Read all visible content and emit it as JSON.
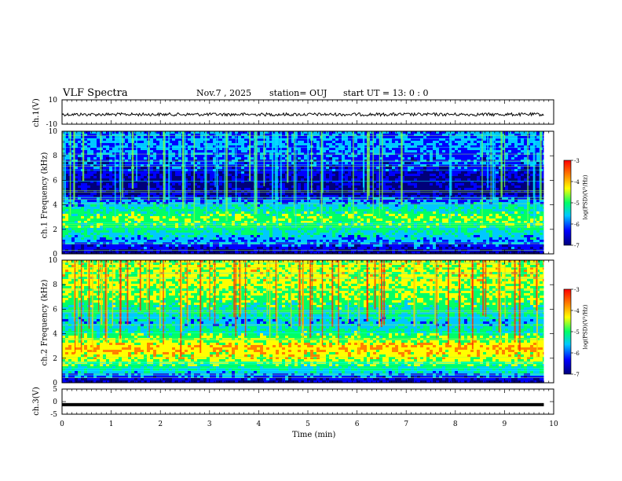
{
  "header": {
    "title": "VLF Spectra",
    "date": "Nov.7 , 2025",
    "station": "station= OUJ",
    "start": "start UT = 13: 0 : 0"
  },
  "chart_data": [
    {
      "type": "line",
      "panel": "ch1-waveform",
      "ylabel": "ch.1(V)",
      "ylim": [
        -10,
        10
      ],
      "y_ticks": [
        "10",
        "-10"
      ],
      "x": [
        0,
        9.8
      ],
      "series": [
        {
          "values": [
            -2,
            -2
          ]
        }
      ]
    },
    {
      "type": "heatmap",
      "panel": "ch1-spectrogram",
      "ylabel": "ch.1 Frequency (kHz)",
      "ylim": [
        0,
        10
      ],
      "y_ticks": [
        "0",
        "2",
        "4",
        "6",
        "8",
        "10"
      ],
      "colorbar": {
        "label": "log(PSD)(V²/Hz)",
        "ticks": [
          "-3",
          "-4",
          "-5",
          "-6",
          "-7"
        ],
        "range": [
          -7,
          -3
        ]
      }
    },
    {
      "type": "heatmap",
      "panel": "ch2-spectrogram",
      "ylabel": "ch.2 Frequency (kHz)",
      "ylim": [
        0,
        10
      ],
      "y_ticks": [
        "0",
        "2",
        "4",
        "6",
        "8",
        "10"
      ],
      "colorbar": {
        "label": "log(PSD)(V²/Hz)",
        "ticks": [
          "-3",
          "-4",
          "-5",
          "-6",
          "-7"
        ],
        "range": [
          -7,
          -3
        ]
      }
    },
    {
      "type": "line",
      "panel": "ch3-waveform",
      "ylabel": "ch.3(V)",
      "ylim": [
        -5,
        5
      ],
      "y_ticks": [
        "5",
        "0",
        "-5"
      ],
      "x": [
        0,
        9.8
      ],
      "series": [
        {
          "values": [
            -1.2,
            -1.2
          ]
        }
      ]
    }
  ],
  "x_axis": {
    "label": "Time (min)",
    "ticks": [
      "0",
      "1",
      "2",
      "3",
      "4",
      "5",
      "6",
      "7",
      "8",
      "9",
      "10"
    ],
    "xlim": [
      0,
      10
    ]
  },
  "colors": {
    "colormap": [
      "#00007a",
      "#0000ff",
      "#00c8ff",
      "#00ff66",
      "#ffff00",
      "#ff8000",
      "#ff0000"
    ]
  }
}
